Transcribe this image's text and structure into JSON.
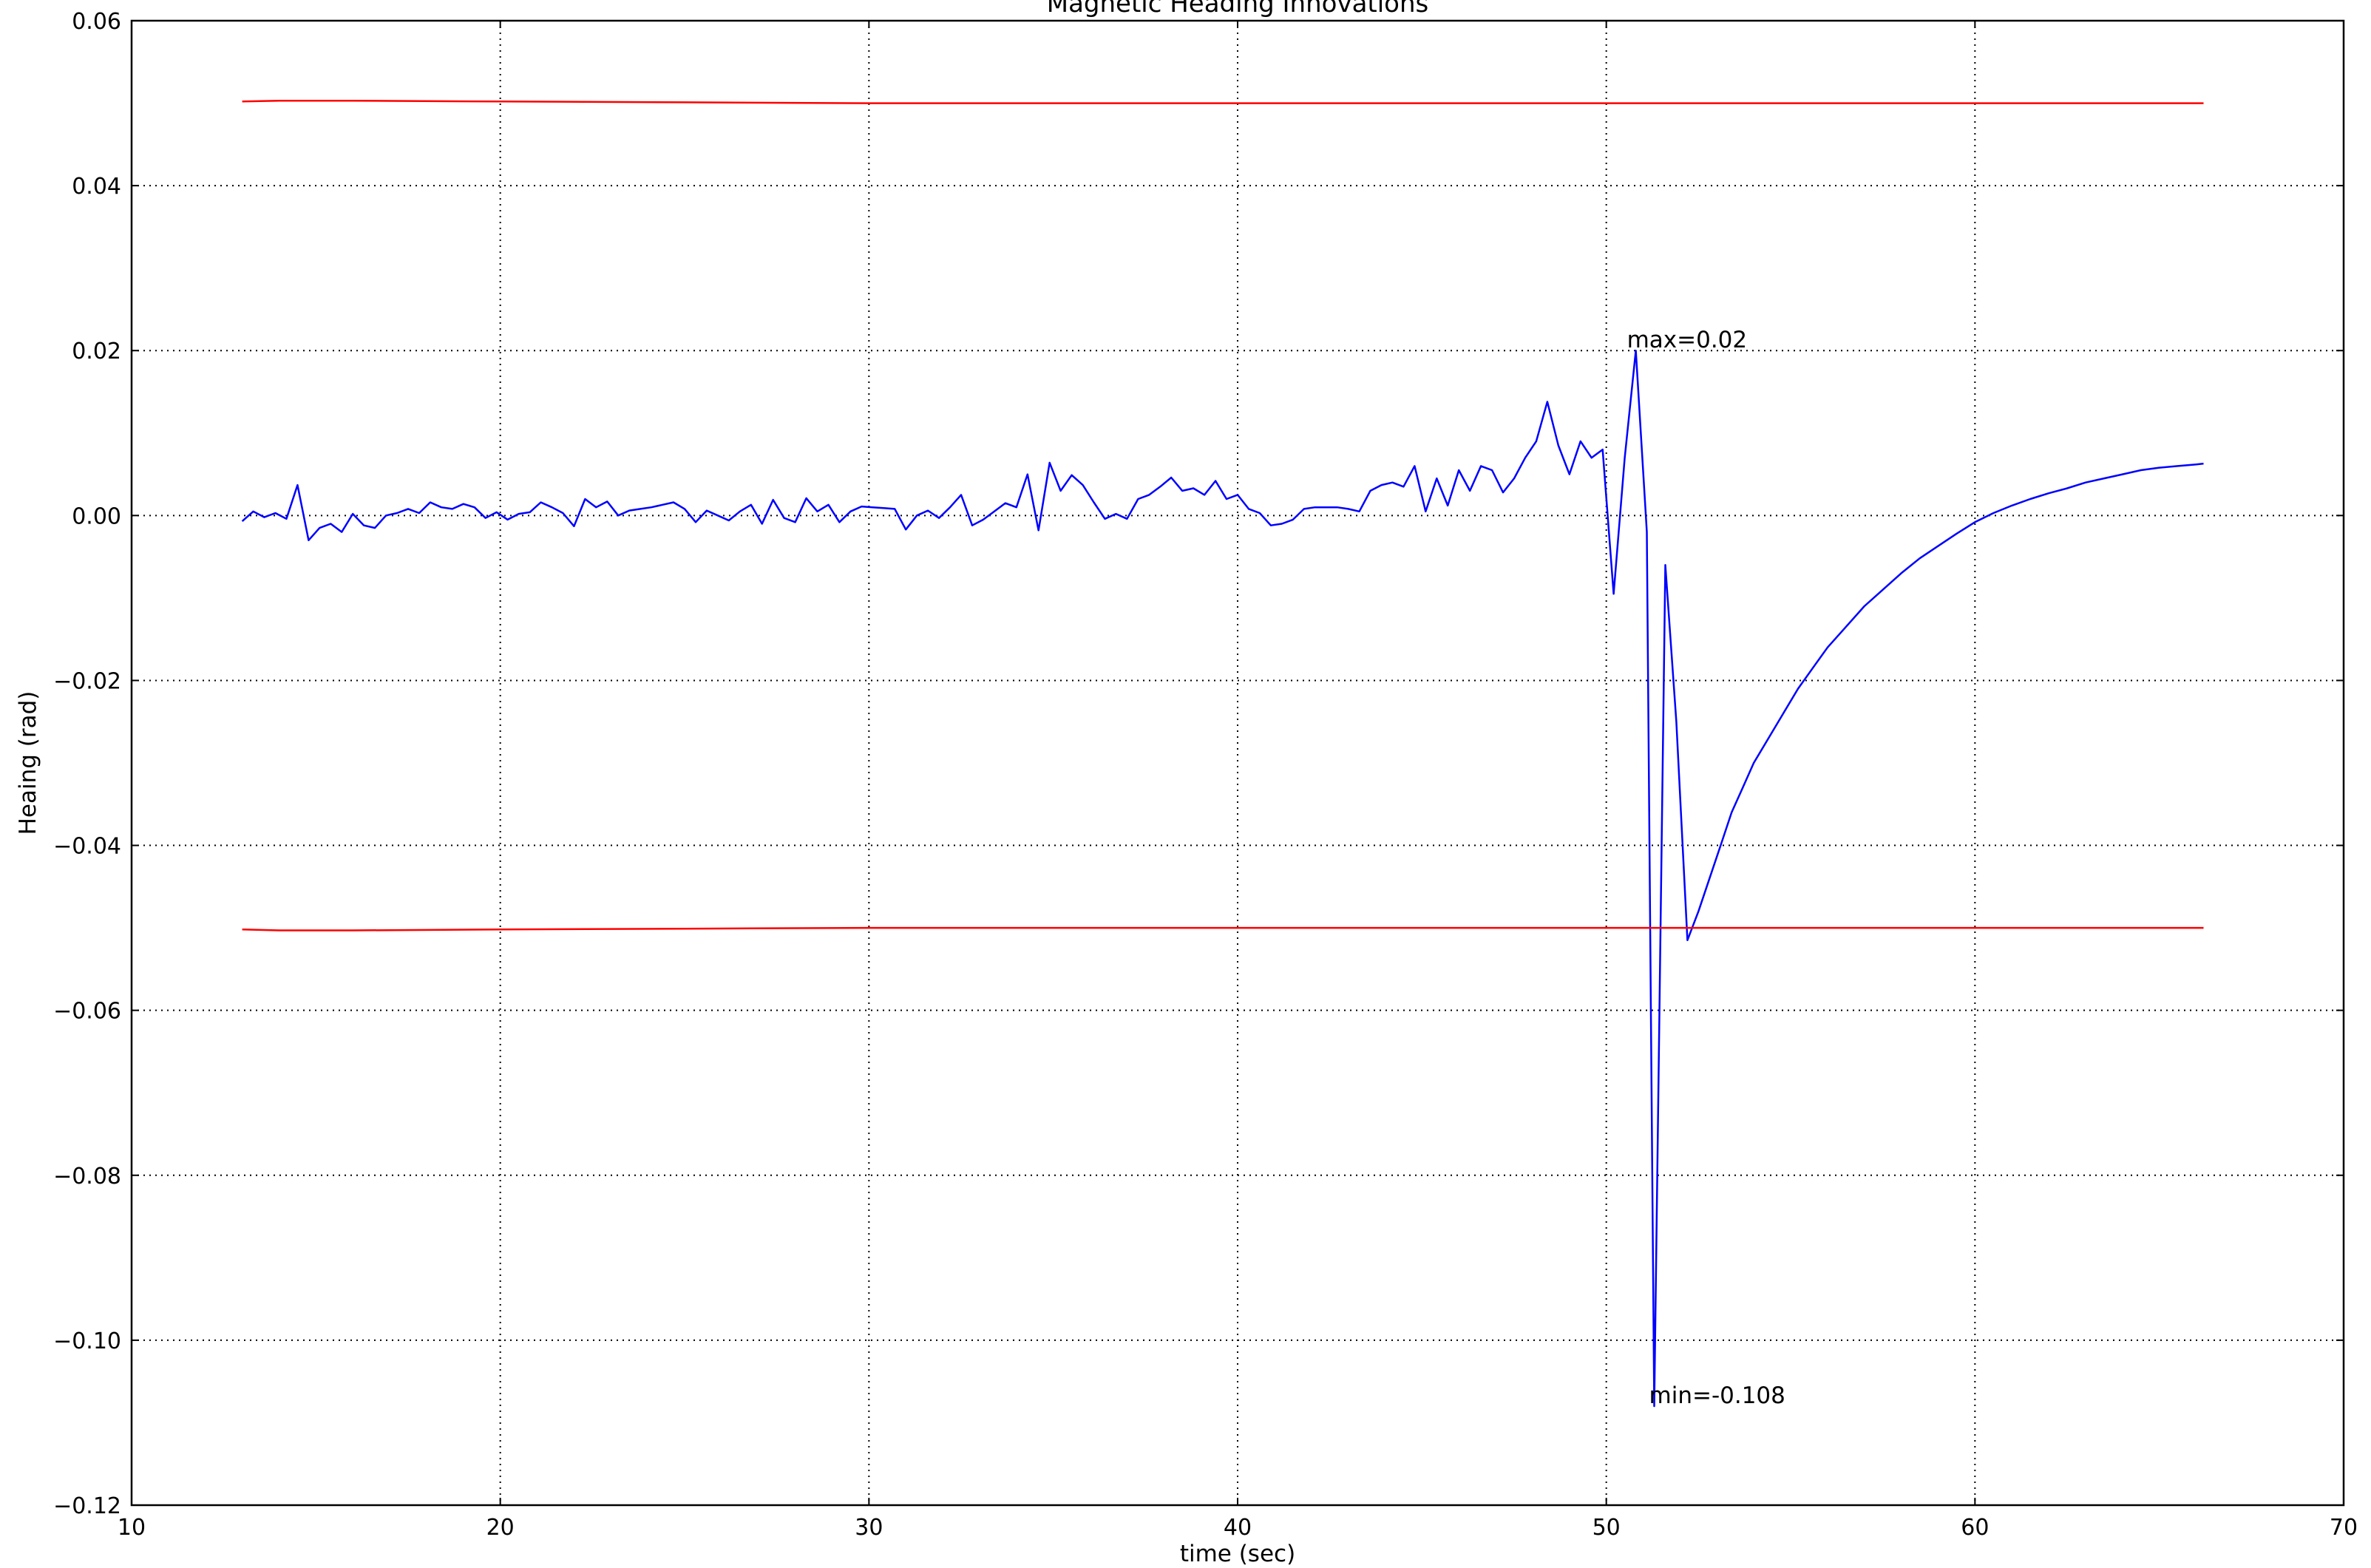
{
  "chart_data": {
    "type": "line",
    "title": "Magnetic Heading Innovations",
    "xlabel": "time (sec)",
    "ylabel": "Heaing (rad)",
    "xlim": [
      10,
      70
    ],
    "ylim": [
      -0.12,
      0.06
    ],
    "x_ticks": [
      10,
      20,
      30,
      40,
      50,
      60,
      70
    ],
    "y_ticks": [
      0.06,
      0.04,
      0.02,
      0.0,
      -0.02,
      -0.04,
      -0.06,
      -0.08,
      -0.1,
      -0.12
    ],
    "x_tick_labels": [
      "10",
      "20",
      "30",
      "40",
      "50",
      "60",
      "70"
    ],
    "y_tick_labels": [
      "0.06",
      "0.04",
      "0.02",
      "0.00",
      "−0.02",
      "−0.04",
      "−0.06",
      "−0.08",
      "−0.10",
      "−0.12"
    ],
    "grid": true,
    "colors": {
      "innovation": "#0000ff",
      "bounds": "#ff0000"
    },
    "series": [
      {
        "color": "#0000ff",
        "x": [
          13.0,
          13.3,
          13.6,
          13.9,
          14.2,
          14.5,
          14.8,
          15.1,
          15.4,
          15.7,
          16.0,
          16.3,
          16.6,
          16.9,
          17.2,
          17.5,
          17.8,
          18.1,
          18.4,
          18.7,
          19.0,
          19.3,
          19.6,
          19.9,
          20.2,
          20.5,
          20.8,
          21.1,
          21.4,
          21.7,
          22.0,
          22.3,
          22.6,
          22.9,
          23.2,
          23.5,
          23.8,
          24.1,
          24.4,
          24.7,
          25.0,
          25.3,
          25.6,
          25.9,
          26.2,
          26.5,
          26.8,
          27.1,
          27.4,
          27.7,
          28.0,
          28.3,
          28.6,
          28.9,
          29.2,
          29.5,
          29.8,
          30.1,
          30.4,
          30.7,
          31.0,
          31.3,
          31.6,
          31.9,
          32.2,
          32.5,
          32.8,
          33.1,
          33.4,
          33.7,
          34.0,
          34.3,
          34.6,
          34.9,
          35.2,
          35.5,
          35.8,
          36.1,
          36.4,
          36.7,
          37.0,
          37.3,
          37.6,
          37.9,
          38.2,
          38.5,
          38.8,
          39.1,
          39.4,
          39.7,
          40.0,
          40.3,
          40.6,
          40.9,
          41.2,
          41.5,
          41.8,
          42.1,
          42.4,
          42.7,
          43.0,
          43.3,
          43.6,
          43.9,
          44.2,
          44.5,
          44.8,
          45.1,
          45.4,
          45.7,
          46.0,
          46.3,
          46.6,
          46.9,
          47.2,
          47.5,
          47.8,
          48.1,
          48.4,
          48.7,
          49.0,
          49.3,
          49.6,
          49.9,
          50.2,
          50.5,
          50.8,
          51.1,
          51.3,
          51.6,
          51.9,
          52.2,
          52.5,
          52.8,
          53.1,
          53.4,
          53.7,
          54.0,
          54.4,
          54.8,
          55.2,
          55.6,
          56.0,
          56.5,
          57.0,
          57.5,
          58.0,
          58.5,
          59.0,
          59.5,
          60.0,
          60.5,
          61.0,
          61.5,
          62.0,
          62.5,
          63.0,
          63.5,
          64.0,
          64.5,
          65.0,
          65.5,
          66.0,
          66.2
        ],
        "y": [
          -0.0007,
          0.0005,
          -0.0002,
          0.0003,
          -0.0004,
          0.0037,
          -0.003,
          -0.0015,
          -0.001,
          -0.002,
          0.0002,
          -0.0012,
          -0.0015,
          0.0,
          0.0003,
          0.0008,
          0.0003,
          0.0016,
          0.001,
          0.0008,
          0.0014,
          0.001,
          -0.0003,
          0.0004,
          -0.0005,
          0.0002,
          0.0004,
          0.0016,
          0.001,
          0.0003,
          -0.0013,
          0.002,
          0.001,
          0.0017,
          0.0,
          0.0006,
          0.0008,
          0.001,
          0.0013,
          0.0016,
          0.0008,
          -0.0008,
          0.0006,
          0.0,
          -0.0006,
          0.0005,
          0.0013,
          -0.001,
          0.0019,
          -0.0003,
          -0.0008,
          0.0021,
          0.0005,
          0.0013,
          -0.0008,
          0.0005,
          0.0011,
          0.001,
          0.0009,
          0.0008,
          -0.0017,
          0.0,
          0.0006,
          -0.0003,
          0.001,
          0.0025,
          -0.0012,
          -0.0005,
          0.0005,
          0.0015,
          0.001,
          0.005,
          -0.0018,
          0.0064,
          0.003,
          0.0049,
          0.0037,
          0.0016,
          -0.0004,
          0.0002,
          -0.0004,
          0.002,
          0.0025,
          0.0035,
          0.0046,
          0.003,
          0.0033,
          0.0025,
          0.0042,
          0.002,
          0.0025,
          0.0008,
          0.0003,
          -0.0012,
          -0.001,
          -0.0005,
          0.0008,
          0.001,
          0.001,
          0.001,
          0.0008,
          0.0005,
          0.003,
          0.0037,
          0.004,
          0.0035,
          0.006,
          0.0005,
          0.0045,
          0.0012,
          0.0055,
          0.003,
          0.006,
          0.0055,
          0.0028,
          0.0045,
          0.007,
          0.009,
          0.0138,
          0.0085,
          0.005,
          0.009,
          0.007,
          0.008,
          -0.0095,
          0.007,
          0.02,
          -0.002,
          -0.108,
          -0.006,
          -0.025,
          -0.0515,
          -0.048,
          -0.044,
          -0.04,
          -0.036,
          -0.033,
          -0.03,
          -0.027,
          -0.024,
          -0.021,
          -0.0185,
          -0.016,
          -0.0135,
          -0.011,
          -0.009,
          -0.007,
          -0.0052,
          -0.0037,
          -0.0022,
          -0.0008,
          0.0003,
          0.0012,
          0.002,
          0.0027,
          0.0033,
          0.004,
          0.0045,
          0.005,
          0.0055,
          0.0058,
          0.006,
          0.0062,
          0.0063
        ]
      },
      {
        "color": "#ff0000",
        "x": [
          13.0,
          14.0,
          16.0,
          20.0,
          25.0,
          30.0,
          40.0,
          50.0,
          60.0,
          66.2
        ],
        "y": [
          0.0502,
          0.0503,
          0.0503,
          0.0502,
          0.0501,
          0.05,
          0.05,
          0.05,
          0.05,
          0.05
        ]
      },
      {
        "color": "#ff0000",
        "x": [
          13.0,
          14.0,
          16.0,
          20.0,
          25.0,
          30.0,
          40.0,
          50.0,
          60.0,
          66.2
        ],
        "y": [
          -0.0502,
          -0.0503,
          -0.0503,
          -0.0502,
          -0.0501,
          -0.05,
          -0.05,
          -0.05,
          -0.05,
          -0.05
        ]
      }
    ],
    "annotations": [
      {
        "text": "max=0.02",
        "x": 50.5,
        "y": 0.02
      },
      {
        "text": "min=-0.108",
        "x": 51.1,
        "y": -0.108
      }
    ]
  }
}
